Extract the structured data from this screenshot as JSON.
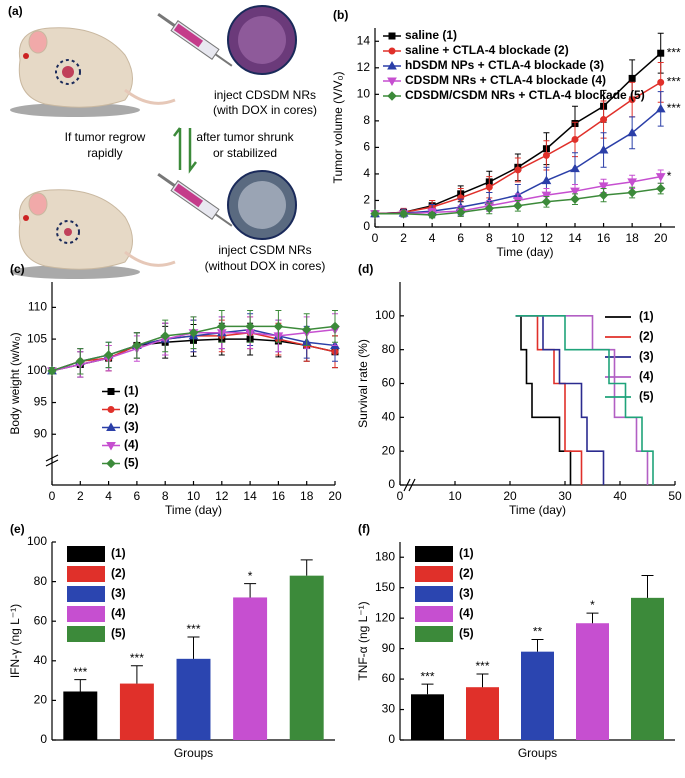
{
  "diagram": {
    "panel": "(a)",
    "top_label": [
      "inject CDSDM NRs",
      "(with DOX in cores)"
    ],
    "left_label": [
      "If tumor regrow",
      "rapidly"
    ],
    "right_label": [
      "after tumor shrunk",
      "or stabilized"
    ],
    "bottom_label": [
      "inject CSDM NRs",
      "(without DOX in cores)"
    ]
  },
  "chart_data": [
    {
      "type": "line",
      "panel": "(b)",
      "xlabel": "Time (day)",
      "ylabel": "Tumor volume (V/V₀)",
      "legend": "upper left",
      "x": [
        0,
        2,
        4,
        6,
        8,
        10,
        12,
        14,
        16,
        18,
        20
      ],
      "xlim": [
        0,
        21
      ],
      "xticks": [
        0,
        2,
        4,
        6,
        8,
        10,
        12,
        14,
        16,
        18,
        20
      ],
      "ylim": [
        0,
        15
      ],
      "yticks": [
        0,
        2,
        4,
        6,
        8,
        10,
        12,
        14
      ],
      "series": [
        {
          "name": "saline (1)",
          "color": "#000000",
          "marker": "square",
          "sig": "***",
          "values": [
            1,
            1.1,
            1.6,
            2.5,
            3.4,
            4.5,
            5.9,
            7.8,
            9.1,
            11.2,
            13.1
          ],
          "errors": [
            0.1,
            0.2,
            0.4,
            0.6,
            0.8,
            1.0,
            1.2,
            1.3,
            1.2,
            1.4,
            1.5
          ]
        },
        {
          "name": "saline + CTLA-4 blockade (2)",
          "color": "#e0302a",
          "marker": "circle",
          "sig": "***",
          "values": [
            1,
            1.1,
            1.5,
            2.2,
            3.0,
            4.3,
            5.4,
            6.6,
            8.1,
            9.6,
            10.9
          ],
          "errors": [
            0.1,
            0.3,
            0.5,
            0.7,
            0.8,
            0.9,
            1.1,
            1.3,
            1.4,
            1.3,
            1.5
          ]
        },
        {
          "name": "hDSDM NPs + CTLA-4 blockade (3)",
          "color": "#2b3fa8",
          "marker": "triangle-up",
          "sig": "***",
          "values": [
            1,
            1.05,
            1.2,
            1.5,
            1.9,
            2.4,
            3.5,
            4.4,
            5.8,
            7.1,
            8.9
          ],
          "errors": [
            0.1,
            0.3,
            0.5,
            0.6,
            0.7,
            0.8,
            1.0,
            1.2,
            1.3,
            1.2,
            1.3
          ]
        },
        {
          "name": "CDSDM NRs + CTLA-4 blockade (4)",
          "color": "#c64fd0",
          "marker": "triangle-down",
          "sig": "*",
          "values": [
            1,
            1.0,
            1.1,
            1.2,
            1.6,
            2.0,
            2.4,
            2.7,
            3.1,
            3.4,
            3.8
          ],
          "errors": [
            0.1,
            0.2,
            0.3,
            0.4,
            0.4,
            0.5,
            0.5,
            0.5,
            0.5,
            0.5,
            0.5
          ]
        },
        {
          "name": "CDSDM/CSDM NRs + CTLA-4 blockade (5)",
          "color": "#3c8a3a",
          "marker": "diamond",
          "values": [
            1,
            1.0,
            0.9,
            1.1,
            1.4,
            1.6,
            1.9,
            2.1,
            2.4,
            2.6,
            2.9
          ],
          "errors": [
            0.1,
            0.2,
            0.2,
            0.3,
            0.4,
            0.4,
            0.4,
            0.4,
            0.5,
            0.4,
            0.4
          ]
        }
      ]
    },
    {
      "type": "line",
      "panel": "(c)",
      "xlabel": "Time (day)",
      "ylabel": "Body weight (w/w₀)",
      "legend": "center",
      "x": [
        0,
        2,
        4,
        6,
        8,
        10,
        12,
        14,
        16,
        18,
        20
      ],
      "xlim": [
        0,
        20
      ],
      "xticks": [
        0,
        2,
        4,
        6,
        8,
        10,
        12,
        14,
        16,
        18,
        20
      ],
      "ylim": [
        82,
        114
      ],
      "yticks": [
        90,
        95,
        100,
        105,
        110
      ],
      "series": [
        {
          "name": "(1)",
          "color": "#000000",
          "marker": "square",
          "values": [
            100,
            101,
            102,
            104,
            104.5,
            104.8,
            105,
            105,
            104.7,
            104,
            103
          ],
          "errors": [
            0.5,
            2,
            2,
            2,
            2.5,
            2.5,
            2.5,
            2.5,
            2.5,
            2.5,
            2.5
          ]
        },
        {
          "name": "(2)",
          "color": "#e0302a",
          "marker": "circle",
          "values": [
            100,
            101.5,
            102,
            104,
            105,
            105.5,
            105.5,
            106,
            105,
            104,
            103
          ],
          "errors": [
            0.5,
            2,
            2,
            2,
            2.5,
            2.5,
            2.5,
            2.5,
            2.5,
            2.5,
            2.5
          ]
        },
        {
          "name": "(3)",
          "color": "#2b3fa8",
          "marker": "triangle-up",
          "values": [
            100,
            101.5,
            102.5,
            104,
            105,
            105.5,
            106,
            106.5,
            105.5,
            104.5,
            104
          ],
          "errors": [
            0.5,
            2,
            2,
            2,
            2.5,
            2.5,
            2.5,
            2.5,
            2.5,
            2.5,
            2.5
          ]
        },
        {
          "name": "(4)",
          "color": "#c64fd0",
          "marker": "triangle-down",
          "values": [
            100,
            101,
            102,
            103.5,
            105,
            106,
            106,
            106,
            105.5,
            106,
            106.5
          ],
          "errors": [
            0.5,
            2,
            2,
            2,
            2.5,
            2.5,
            2.5,
            2.5,
            2.5,
            2.5,
            2.5
          ]
        },
        {
          "name": "(5)",
          "color": "#3c8a3a",
          "marker": "diamond",
          "values": [
            100,
            101.5,
            102.5,
            104,
            105.5,
            106,
            107,
            107,
            107,
            106.5,
            107
          ],
          "errors": [
            0.5,
            2,
            2,
            2,
            2.5,
            2.5,
            2.5,
            2.5,
            2.5,
            2.5,
            2.5
          ]
        }
      ]
    },
    {
      "type": "step",
      "panel": "(d)",
      "xlabel": "Time (day)",
      "ylabel": "Survival rate (%)",
      "legend": "upper right",
      "xlim": [
        0,
        50
      ],
      "xticks": [
        0,
        10,
        20,
        30,
        40,
        50
      ],
      "ylim": [
        0,
        120
      ],
      "yticks": [
        0,
        20,
        40,
        60,
        80,
        100
      ],
      "series": [
        {
          "name": "(1)",
          "color": "#000000",
          "x": [
            21,
            22,
            23,
            24,
            29,
            31
          ],
          "values": [
            100,
            80,
            60,
            40,
            20,
            0
          ]
        },
        {
          "name": "(2)",
          "color": "#e0302a",
          "x": [
            21,
            25,
            28,
            30,
            33
          ],
          "values": [
            100,
            80,
            60,
            20,
            0
          ]
        },
        {
          "name": "(3)",
          "color": "#2b2b8f",
          "x": [
            21,
            26,
            29,
            33,
            34,
            37
          ],
          "values": [
            100,
            80,
            60,
            40,
            20,
            0
          ]
        },
        {
          "name": "(4)",
          "color": "#b25fc4",
          "x": [
            21,
            35,
            39,
            43,
            45
          ],
          "values": [
            100,
            80,
            40,
            20,
            0
          ]
        },
        {
          "name": "(5)",
          "color": "#1fa37a",
          "x": [
            21,
            30,
            38,
            41,
            44,
            46
          ],
          "values": [
            100,
            80,
            60,
            40,
            20,
            0
          ]
        }
      ]
    },
    {
      "type": "bar",
      "panel": "(e)",
      "xlabel": "Groups",
      "ylabel": "IFN-γ (ng L⁻¹)",
      "legend": "upper left",
      "ylim": [
        0,
        100
      ],
      "yticks": [
        0,
        20,
        40,
        60,
        80,
        100
      ],
      "series": [
        {
          "name": "(1)",
          "color": "#000000",
          "sig": "***",
          "values": [
            24.5
          ],
          "errors": [
            6
          ]
        },
        {
          "name": "(2)",
          "color": "#e0302a",
          "sig": "***",
          "values": [
            28.5
          ],
          "errors": [
            9
          ]
        },
        {
          "name": "(3)",
          "color": "#2b45b0",
          "sig": "***",
          "values": [
            41
          ],
          "errors": [
            11
          ]
        },
        {
          "name": "(4)",
          "color": "#c64fd0",
          "sig": "*",
          "values": [
            72
          ],
          "errors": [
            7
          ]
        },
        {
          "name": "(5)",
          "color": "#3c8a3a",
          "values": [
            83
          ],
          "errors": [
            8
          ]
        }
      ]
    },
    {
      "type": "bar",
      "panel": "(f)",
      "xlabel": "Groups",
      "ylabel": "TNF-α (ng L⁻¹)",
      "legend": "upper left",
      "ylim": [
        0,
        195
      ],
      "yticks": [
        0,
        30,
        60,
        90,
        120,
        150,
        180
      ],
      "series": [
        {
          "name": "(1)",
          "color": "#000000",
          "sig": "***",
          "values": [
            45
          ],
          "errors": [
            10
          ]
        },
        {
          "name": "(2)",
          "color": "#e0302a",
          "sig": "***",
          "values": [
            52
          ],
          "errors": [
            13
          ]
        },
        {
          "name": "(3)",
          "color": "#2b45b0",
          "sig": "**",
          "values": [
            87
          ],
          "errors": [
            12
          ]
        },
        {
          "name": "(4)",
          "color": "#c64fd0",
          "sig": "*",
          "values": [
            115
          ],
          "errors": [
            10
          ]
        },
        {
          "name": "(5)",
          "color": "#3c8a3a",
          "values": [
            140
          ],
          "errors": [
            22
          ]
        }
      ]
    }
  ]
}
